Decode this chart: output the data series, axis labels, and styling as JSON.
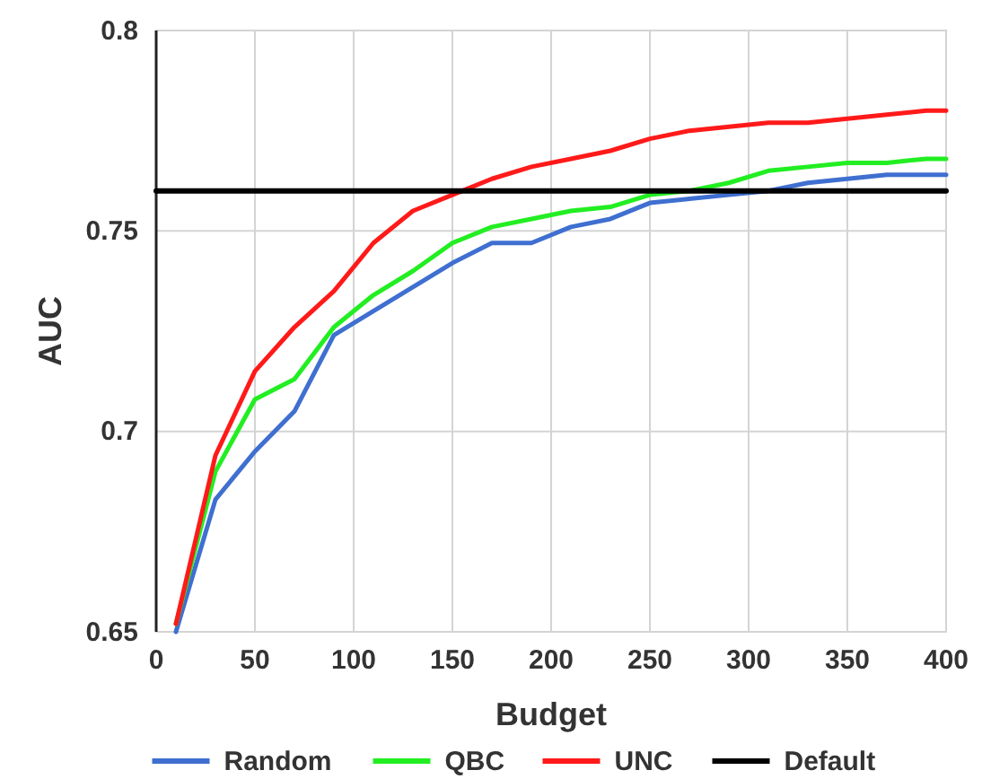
{
  "chart_data": {
    "type": "line",
    "xlabel": "Budget",
    "ylabel": "AUC",
    "x": [
      10,
      30,
      50,
      70,
      90,
      110,
      130,
      150,
      170,
      190,
      210,
      230,
      250,
      270,
      290,
      310,
      330,
      350,
      370,
      390,
      400
    ],
    "xlim": [
      0,
      400
    ],
    "xticks": [
      0,
      50,
      100,
      150,
      200,
      250,
      300,
      350,
      400
    ],
    "ylim": [
      0.65,
      0.8
    ],
    "yticks": [
      0.65,
      0.7,
      0.75,
      0.8
    ],
    "grid": true,
    "legend": "bottom",
    "series": [
      {
        "name": "Random",
        "color": "#3f6fd0",
        "values": [
          0.65,
          0.683,
          0.695,
          0.705,
          0.724,
          0.73,
          0.736,
          0.742,
          0.747,
          0.747,
          0.751,
          0.753,
          0.757,
          0.758,
          0.759,
          0.76,
          0.762,
          0.763,
          0.764,
          0.764,
          0.764
        ]
      },
      {
        "name": "QBC",
        "color": "#22ee22",
        "values": [
          0.652,
          0.69,
          0.708,
          0.713,
          0.726,
          0.734,
          0.74,
          0.747,
          0.751,
          0.753,
          0.755,
          0.756,
          0.759,
          0.76,
          0.762,
          0.765,
          0.766,
          0.767,
          0.767,
          0.768,
          0.768
        ]
      },
      {
        "name": "UNC",
        "color": "#ff1a1a",
        "values": [
          0.652,
          0.694,
          0.715,
          0.726,
          0.735,
          0.747,
          0.755,
          0.759,
          0.763,
          0.766,
          0.768,
          0.77,
          0.773,
          0.775,
          0.776,
          0.777,
          0.777,
          0.778,
          0.779,
          0.78,
          0.78
        ]
      },
      {
        "name": "Default",
        "color": "#000000",
        "x": [
          0,
          400
        ],
        "values": [
          0.76,
          0.76
        ]
      }
    ]
  }
}
